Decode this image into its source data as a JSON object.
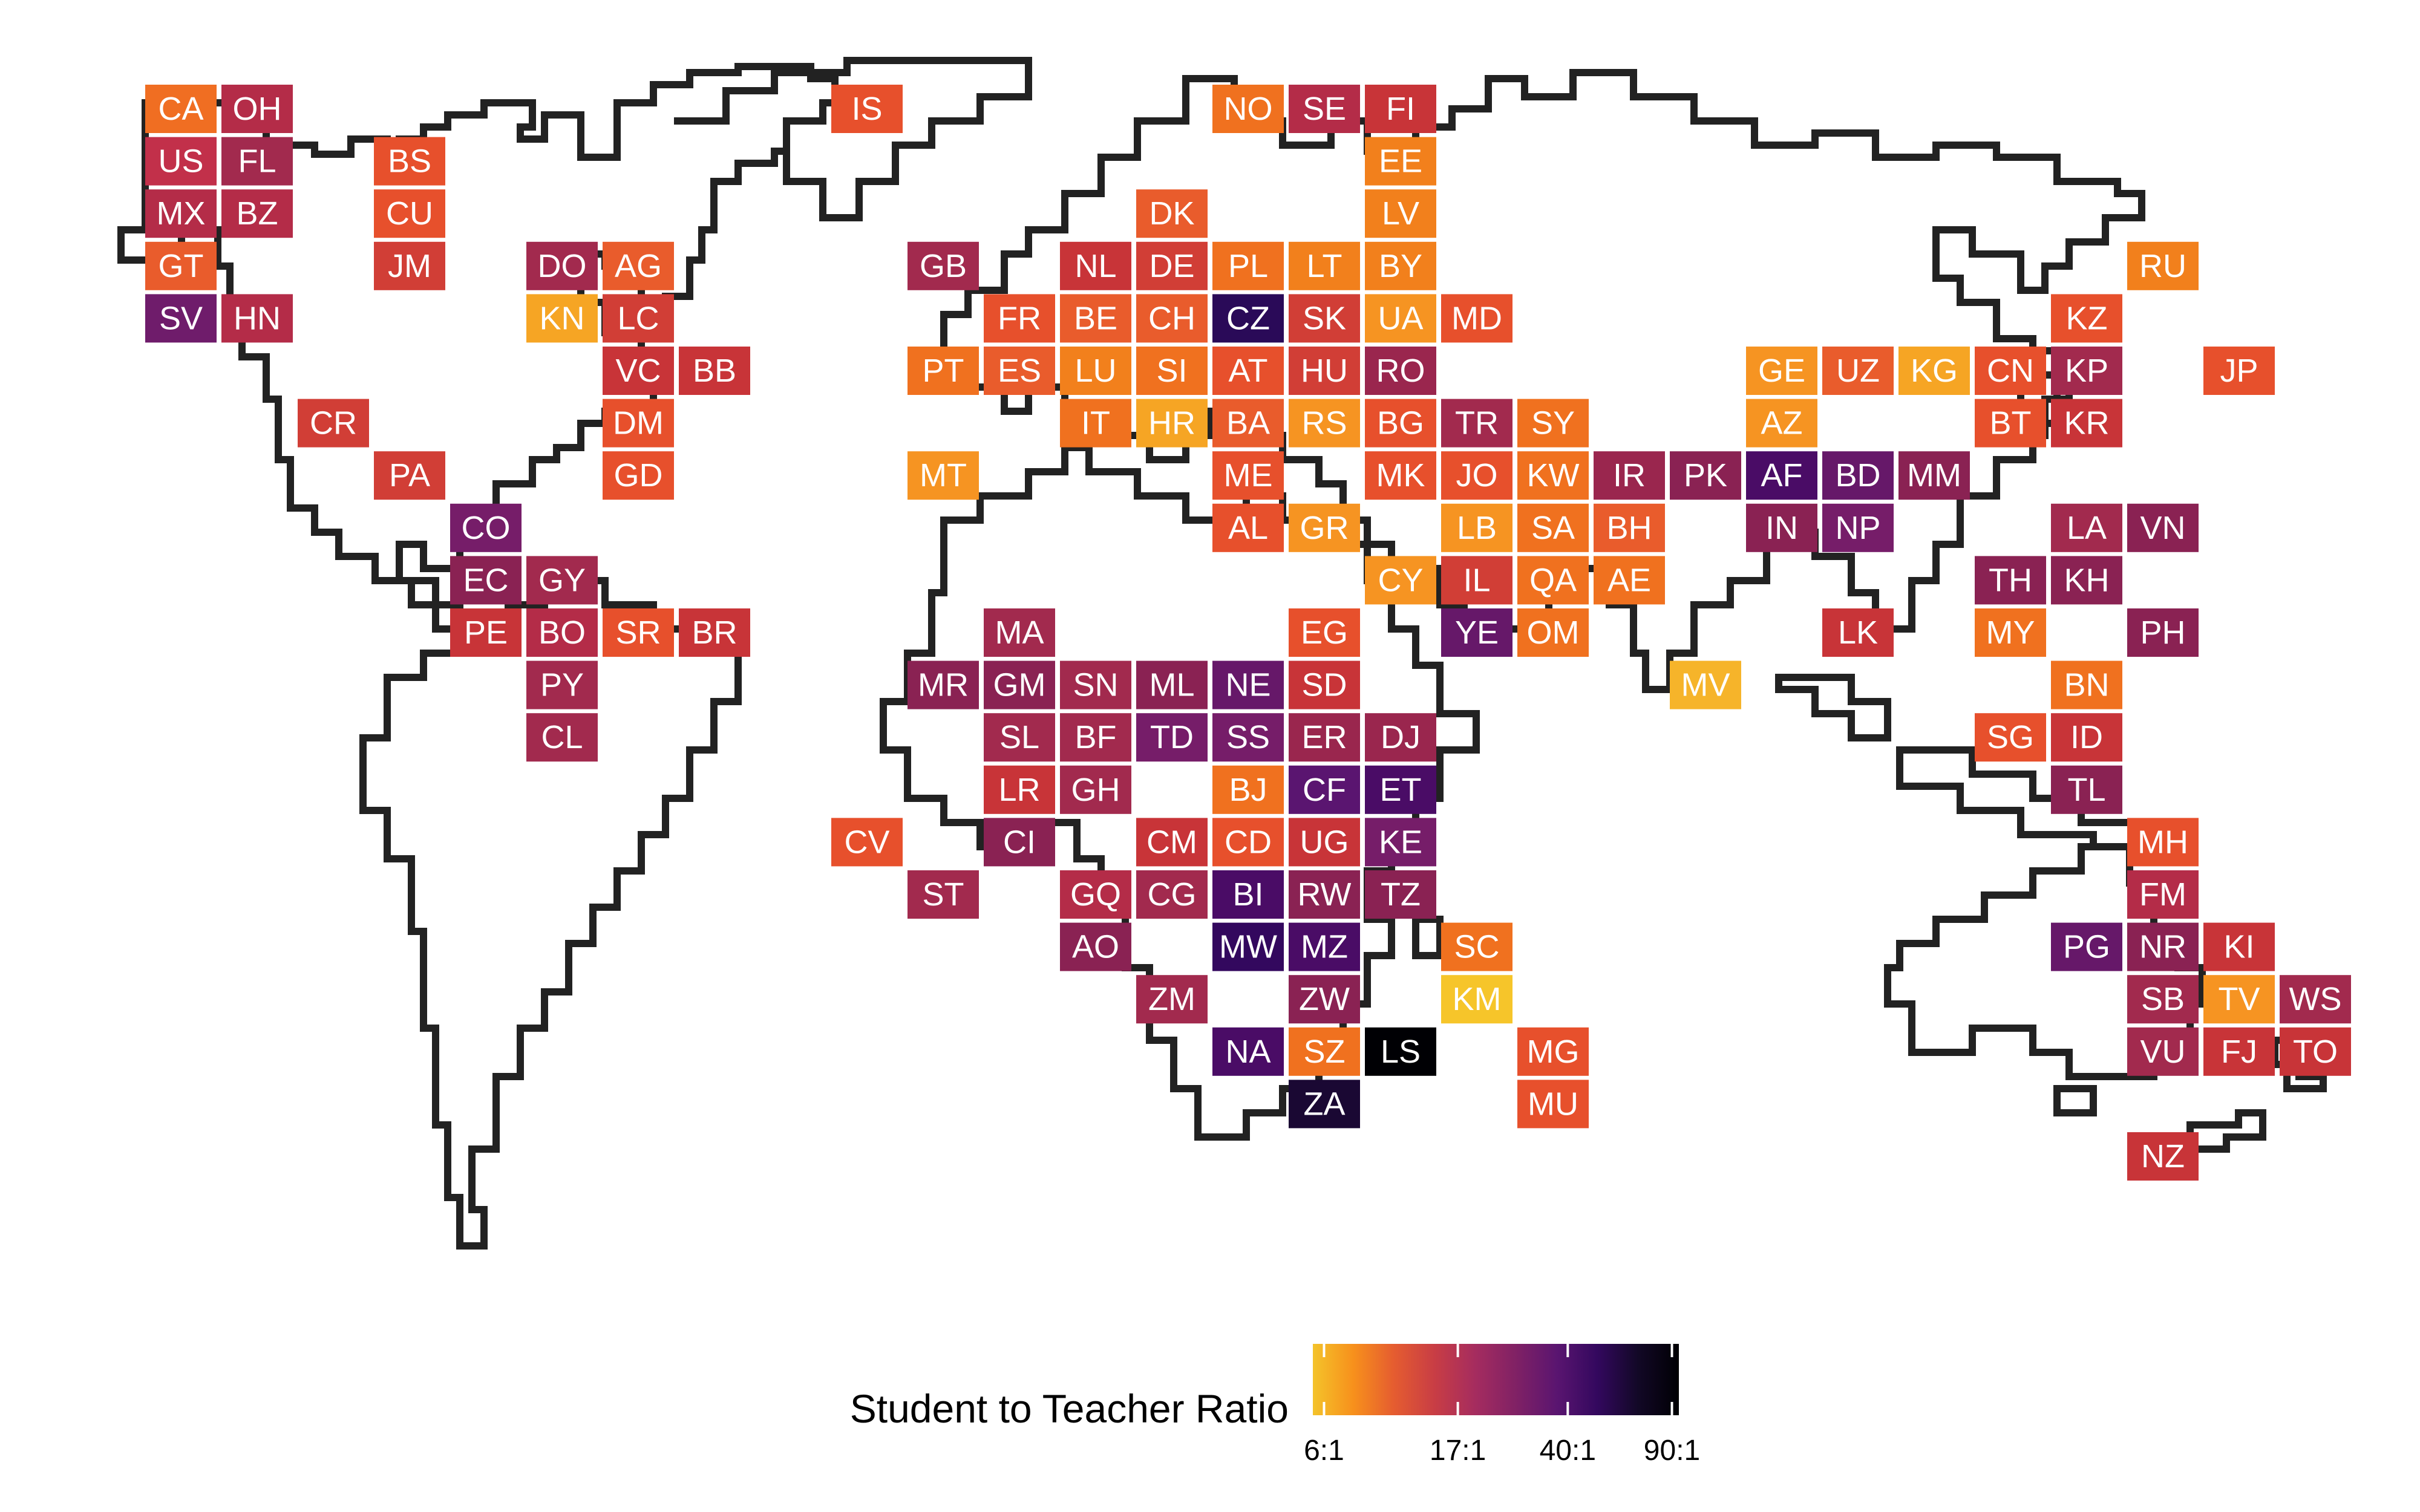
{
  "map": {
    "legend": {
      "title": "Student to Teacher Ratio",
      "ticks": [
        "6:1",
        "17:1",
        "40:1",
        "90:1"
      ],
      "scale": "log",
      "palette": "inferno",
      "colors": [
        "#f4c32a",
        "#f7901c",
        "#e55c30",
        "#c83d45",
        "#a52c5f",
        "#802165",
        "#5a1570",
        "#33085e",
        "#120826",
        "#000004"
      ]
    },
    "countries": [
      {
        "code": "CA",
        "color": "#f06e22",
        "row": 0,
        "col": 0
      },
      {
        "code": "OH",
        "color": "#b42c48",
        "row": 0,
        "col": 1
      },
      {
        "code": "IS",
        "color": "#e7502c",
        "row": 0,
        "col": 9
      },
      {
        "code": "NO",
        "color": "#f0711f",
        "row": 0,
        "col": 14
      },
      {
        "code": "SE",
        "color": "#b42c48",
        "row": 0,
        "col": 15
      },
      {
        "code": "FI",
        "color": "#c83438",
        "row": 0,
        "col": 16
      },
      {
        "code": "US",
        "color": "#c2304a",
        "row": 1,
        "col": 0
      },
      {
        "code": "FL",
        "color": "#a22a4e",
        "row": 1,
        "col": 1
      },
      {
        "code": "BS",
        "color": "#e7502c",
        "row": 1,
        "col": 3
      },
      {
        "code": "EE",
        "color": "#f2801c",
        "row": 1,
        "col": 16
      },
      {
        "code": "MX",
        "color": "#b42c48",
        "row": 2,
        "col": 0
      },
      {
        "code": "BZ",
        "color": "#b42c48",
        "row": 2,
        "col": 1
      },
      {
        "code": "CU",
        "color": "#e7502c",
        "row": 2,
        "col": 3
      },
      {
        "code": "DK",
        "color": "#e95c2c",
        "row": 2,
        "col": 13
      },
      {
        "code": "LV",
        "color": "#f2801c",
        "row": 2,
        "col": 16
      },
      {
        "code": "GT",
        "color": "#e95c2c",
        "row": 3,
        "col": 0
      },
      {
        "code": "JM",
        "color": "#d13e36",
        "row": 3,
        "col": 3
      },
      {
        "code": "DO",
        "color": "#a22a4e",
        "row": 3,
        "col": 5
      },
      {
        "code": "AG",
        "color": "#e95c2c",
        "row": 3,
        "col": 6
      },
      {
        "code": "GB",
        "color": "#a22a4e",
        "row": 3,
        "col": 10
      },
      {
        "code": "NL",
        "color": "#c83438",
        "row": 3,
        "col": 12
      },
      {
        "code": "DE",
        "color": "#d13e36",
        "row": 3,
        "col": 13
      },
      {
        "code": "PL",
        "color": "#f0711f",
        "row": 3,
        "col": 14
      },
      {
        "code": "LT",
        "color": "#f2801c",
        "row": 3,
        "col": 15
      },
      {
        "code": "BY",
        "color": "#f2801c",
        "row": 3,
        "col": 16
      },
      {
        "code": "RU",
        "color": "#f2801c",
        "row": 3,
        "col": 26
      },
      {
        "code": "SV",
        "color": "#6f1c6b",
        "row": 4,
        "col": 0
      },
      {
        "code": "HN",
        "color": "#b42c48",
        "row": 4,
        "col": 1
      },
      {
        "code": "KN",
        "color": "#f6a524",
        "row": 4,
        "col": 5
      },
      {
        "code": "LC",
        "color": "#d13e36",
        "row": 4,
        "col": 6
      },
      {
        "code": "FR",
        "color": "#e7502c",
        "row": 4,
        "col": 11
      },
      {
        "code": "BE",
        "color": "#e95c2c",
        "row": 4,
        "col": 12
      },
      {
        "code": "CH",
        "color": "#e95c2c",
        "row": 4,
        "col": 13
      },
      {
        "code": "CZ",
        "color": "#2a0a58",
        "row": 4,
        "col": 14
      },
      {
        "code": "SK",
        "color": "#d13e36",
        "row": 4,
        "col": 15
      },
      {
        "code": "UA",
        "color": "#f69422",
        "row": 4,
        "col": 16
      },
      {
        "code": "MD",
        "color": "#e7502c",
        "row": 4,
        "col": 17
      },
      {
        "code": "KZ",
        "color": "#e7502c",
        "row": 4,
        "col": 25
      },
      {
        "code": "VC",
        "color": "#c83438",
        "row": 5,
        "col": 6
      },
      {
        "code": "BB",
        "color": "#c83438",
        "row": 5,
        "col": 7
      },
      {
        "code": "PT",
        "color": "#f0711f",
        "row": 5,
        "col": 10
      },
      {
        "code": "ES",
        "color": "#e95c2c",
        "row": 5,
        "col": 11
      },
      {
        "code": "LU",
        "color": "#f2801c",
        "row": 5,
        "col": 12
      },
      {
        "code": "SI",
        "color": "#f0711f",
        "row": 5,
        "col": 13
      },
      {
        "code": "AT",
        "color": "#e7502c",
        "row": 5,
        "col": 14
      },
      {
        "code": "HU",
        "color": "#d13e36",
        "row": 5,
        "col": 15
      },
      {
        "code": "RO",
        "color": "#9a264e",
        "row": 5,
        "col": 16
      },
      {
        "code": "GE",
        "color": "#f69422",
        "row": 5,
        "col": 21
      },
      {
        "code": "UZ",
        "color": "#e95c2c",
        "row": 5,
        "col": 22
      },
      {
        "code": "KG",
        "color": "#f6a524",
        "row": 5,
        "col": 23
      },
      {
        "code": "CN",
        "color": "#e7502c",
        "row": 5,
        "col": 24
      },
      {
        "code": "KP",
        "color": "#a22a4e",
        "row": 5,
        "col": 25
      },
      {
        "code": "JP",
        "color": "#e7502c",
        "row": 5,
        "col": 27
      },
      {
        "code": "CR",
        "color": "#d13e36",
        "row": 6,
        "col": 2
      },
      {
        "code": "DM",
        "color": "#e7502c",
        "row": 6,
        "col": 6
      },
      {
        "code": "IT",
        "color": "#f0711f",
        "row": 6,
        "col": 12
      },
      {
        "code": "HR",
        "color": "#f6a524",
        "row": 6,
        "col": 13
      },
      {
        "code": "BA",
        "color": "#e95c2c",
        "row": 6,
        "col": 14
      },
      {
        "code": "RS",
        "color": "#f69422",
        "row": 6,
        "col": 15
      },
      {
        "code": "BG",
        "color": "#e7502c",
        "row": 6,
        "col": 16
      },
      {
        "code": "TR",
        "color": "#a22a4e",
        "row": 6,
        "col": 17
      },
      {
        "code": "SY",
        "color": "#f0711f",
        "row": 6,
        "col": 18
      },
      {
        "code": "AZ",
        "color": "#f69422",
        "row": 6,
        "col": 21
      },
      {
        "code": "BT",
        "color": "#e7502c",
        "row": 6,
        "col": 24
      },
      {
        "code": "KR",
        "color": "#c83438",
        "row": 6,
        "col": 25
      },
      {
        "code": "PA",
        "color": "#d13e36",
        "row": 7,
        "col": 3
      },
      {
        "code": "GD",
        "color": "#e7502c",
        "row": 7,
        "col": 6
      },
      {
        "code": "MT",
        "color": "#f69422",
        "row": 7,
        "col": 10
      },
      {
        "code": "ME",
        "color": "#e7502c",
        "row": 7,
        "col": 14
      },
      {
        "code": "MK",
        "color": "#e7502c",
        "row": 7,
        "col": 16
      },
      {
        "code": "JO",
        "color": "#e7502c",
        "row": 7,
        "col": 17
      },
      {
        "code": "KW",
        "color": "#f0711f",
        "row": 7,
        "col": 18
      },
      {
        "code": "IR",
        "color": "#9a264e",
        "row": 7,
        "col": 19
      },
      {
        "code": "PK",
        "color": "#8a2253",
        "row": 7,
        "col": 20
      },
      {
        "code": "AF",
        "color": "#4a0c66",
        "row": 7,
        "col": 21
      },
      {
        "code": "BD",
        "color": "#661869",
        "row": 7,
        "col": 22
      },
      {
        "code": "MM",
        "color": "#8a2253",
        "row": 7,
        "col": 23
      },
      {
        "code": "CO",
        "color": "#761d69",
        "row": 8,
        "col": 4
      },
      {
        "code": "AL",
        "color": "#e7502c",
        "row": 8,
        "col": 14
      },
      {
        "code": "GR",
        "color": "#f69422",
        "row": 8,
        "col": 15
      },
      {
        "code": "LB",
        "color": "#f69422",
        "row": 8,
        "col": 17
      },
      {
        "code": "SA",
        "color": "#f0711f",
        "row": 8,
        "col": 18
      },
      {
        "code": "BH",
        "color": "#e95c2c",
        "row": 8,
        "col": 19
      },
      {
        "code": "IN",
        "color": "#8a2253",
        "row": 8,
        "col": 21
      },
      {
        "code": "NP",
        "color": "#761d69",
        "row": 8,
        "col": 22
      },
      {
        "code": "LA",
        "color": "#a22a4e",
        "row": 8,
        "col": 25
      },
      {
        "code": "VN",
        "color": "#8a2253",
        "row": 8,
        "col": 26
      },
      {
        "code": "EC",
        "color": "#8a2253",
        "row": 9,
        "col": 4
      },
      {
        "code": "GY",
        "color": "#a22a4e",
        "row": 9,
        "col": 5
      },
      {
        "code": "CY",
        "color": "#f69422",
        "row": 9,
        "col": 16
      },
      {
        "code": "IL",
        "color": "#d13e36",
        "row": 9,
        "col": 17
      },
      {
        "code": "QA",
        "color": "#f0711f",
        "row": 9,
        "col": 18
      },
      {
        "code": "AE",
        "color": "#f0711f",
        "row": 9,
        "col": 19
      },
      {
        "code": "TH",
        "color": "#8a2253",
        "row": 9,
        "col": 24
      },
      {
        "code": "KH",
        "color": "#8a2253",
        "row": 9,
        "col": 25
      },
      {
        "code": "PE",
        "color": "#c83438",
        "row": 10,
        "col": 4
      },
      {
        "code": "BO",
        "color": "#b42c48",
        "row": 10,
        "col": 5
      },
      {
        "code": "SR",
        "color": "#e7502c",
        "row": 10,
        "col": 6
      },
      {
        "code": "BR",
        "color": "#c83438",
        "row": 10,
        "col": 7
      },
      {
        "code": "MA",
        "color": "#a22a4e",
        "row": 10,
        "col": 11
      },
      {
        "code": "EG",
        "color": "#e7502c",
        "row": 10,
        "col": 15
      },
      {
        "code": "YE",
        "color": "#661869",
        "row": 10,
        "col": 17
      },
      {
        "code": "OM",
        "color": "#f0711f",
        "row": 10,
        "col": 18
      },
      {
        "code": "LK",
        "color": "#c83438",
        "row": 10,
        "col": 22
      },
      {
        "code": "MY",
        "color": "#f0711f",
        "row": 10,
        "col": 24
      },
      {
        "code": "PH",
        "color": "#8a2253",
        "row": 10,
        "col": 26
      },
      {
        "code": "PY",
        "color": "#a22a4e",
        "row": 11,
        "col": 5
      },
      {
        "code": "MR",
        "color": "#8a2253",
        "row": 11,
        "col": 10
      },
      {
        "code": "GM",
        "color": "#8a2253",
        "row": 11,
        "col": 11
      },
      {
        "code": "SN",
        "color": "#a22a4e",
        "row": 11,
        "col": 12
      },
      {
        "code": "ML",
        "color": "#8a2253",
        "row": 11,
        "col": 13
      },
      {
        "code": "NE",
        "color": "#661869",
        "row": 11,
        "col": 14
      },
      {
        "code": "SD",
        "color": "#c83438",
        "row": 11,
        "col": 15
      },
      {
        "code": "MV",
        "color": "#f6b42a",
        "row": 11,
        "col": 20
      },
      {
        "code": "BN",
        "color": "#f0711f",
        "row": 11,
        "col": 25
      },
      {
        "code": "CL",
        "color": "#a22a4e",
        "row": 12,
        "col": 5
      },
      {
        "code": "SL",
        "color": "#a22a4e",
        "row": 12,
        "col": 11
      },
      {
        "code": "BF",
        "color": "#a22a4e",
        "row": 12,
        "col": 12
      },
      {
        "code": "TD",
        "color": "#761d69",
        "row": 12,
        "col": 13
      },
      {
        "code": "SS",
        "color": "#761d69",
        "row": 12,
        "col": 14
      },
      {
        "code": "ER",
        "color": "#9a264e",
        "row": 12,
        "col": 15
      },
      {
        "code": "DJ",
        "color": "#9a264e",
        "row": 12,
        "col": 16
      },
      {
        "code": "SG",
        "color": "#e7502c",
        "row": 12,
        "col": 24
      },
      {
        "code": "ID",
        "color": "#c83438",
        "row": 12,
        "col": 25
      },
      {
        "code": "LR",
        "color": "#c83438",
        "row": 13,
        "col": 11
      },
      {
        "code": "GH",
        "color": "#a22a4e",
        "row": 13,
        "col": 12
      },
      {
        "code": "BJ",
        "color": "#f0711f",
        "row": 13,
        "col": 14
      },
      {
        "code": "CF",
        "color": "#5a1570",
        "row": 13,
        "col": 15
      },
      {
        "code": "ET",
        "color": "#4a0c66",
        "row": 13,
        "col": 16
      },
      {
        "code": "TL",
        "color": "#8a2253",
        "row": 13,
        "col": 25
      },
      {
        "code": "CV",
        "color": "#e7502c",
        "row": 14,
        "col": 9
      },
      {
        "code": "CI",
        "color": "#8a2253",
        "row": 14,
        "col": 11
      },
      {
        "code": "CM",
        "color": "#c83438",
        "row": 14,
        "col": 13
      },
      {
        "code": "CD",
        "color": "#e7502c",
        "row": 14,
        "col": 14
      },
      {
        "code": "UG",
        "color": "#c83438",
        "row": 14,
        "col": 15
      },
      {
        "code": "KE",
        "color": "#761d69",
        "row": 14,
        "col": 16
      },
      {
        "code": "MH",
        "color": "#e7502c",
        "row": 14,
        "col": 26
      },
      {
        "code": "ST",
        "color": "#a22a4e",
        "row": 15,
        "col": 10
      },
      {
        "code": "GQ",
        "color": "#b42c48",
        "row": 15,
        "col": 12
      },
      {
        "code": "CG",
        "color": "#a22a4e",
        "row": 15,
        "col": 13
      },
      {
        "code": "BI",
        "color": "#4a0c66",
        "row": 15,
        "col": 14
      },
      {
        "code": "RW",
        "color": "#8a2253",
        "row": 15,
        "col": 15
      },
      {
        "code": "TZ",
        "color": "#8a2253",
        "row": 15,
        "col": 16
      },
      {
        "code": "FM",
        "color": "#b42c48",
        "row": 15,
        "col": 26
      },
      {
        "code": "AO",
        "color": "#8a2253",
        "row": 16,
        "col": 12
      },
      {
        "code": "MW",
        "color": "#33085e",
        "row": 16,
        "col": 14
      },
      {
        "code": "MZ",
        "color": "#4a0c66",
        "row": 16,
        "col": 15
      },
      {
        "code": "SC",
        "color": "#f0711f",
        "row": 16,
        "col": 17
      },
      {
        "code": "PG",
        "color": "#661869",
        "row": 16,
        "col": 25
      },
      {
        "code": "NR",
        "color": "#8a2253",
        "row": 16,
        "col": 26
      },
      {
        "code": "KI",
        "color": "#c83438",
        "row": 16,
        "col": 27
      },
      {
        "code": "ZM",
        "color": "#a22a4e",
        "row": 17,
        "col": 13
      },
      {
        "code": "ZW",
        "color": "#8a2253",
        "row": 17,
        "col": 15
      },
      {
        "code": "KM",
        "color": "#f6c52a",
        "row": 17,
        "col": 17
      },
      {
        "code": "SB",
        "color": "#a22a4e",
        "row": 17,
        "col": 26
      },
      {
        "code": "TV",
        "color": "#f69422",
        "row": 17,
        "col": 27
      },
      {
        "code": "WS",
        "color": "#a22a4e",
        "row": 17,
        "col": 28
      },
      {
        "code": "NA",
        "color": "#4a0c66",
        "row": 18,
        "col": 14
      },
      {
        "code": "SZ",
        "color": "#f0711f",
        "row": 18,
        "col": 15
      },
      {
        "code": "LS",
        "color": "#000004",
        "row": 18,
        "col": 16
      },
      {
        "code": "MG",
        "color": "#e7502c",
        "row": 18,
        "col": 18
      },
      {
        "code": "VU",
        "color": "#a22a4e",
        "row": 18,
        "col": 26
      },
      {
        "code": "FJ",
        "color": "#c83438",
        "row": 18,
        "col": 27
      },
      {
        "code": "TO",
        "color": "#c83438",
        "row": 18,
        "col": 28
      },
      {
        "code": "ZA",
        "color": "#1a0833",
        "row": 19,
        "col": 15
      },
      {
        "code": "MU",
        "color": "#e7502c",
        "row": 19,
        "col": 18
      },
      {
        "code": "NZ",
        "color": "#c83438",
        "row": 20,
        "col": 26
      }
    ]
  }
}
